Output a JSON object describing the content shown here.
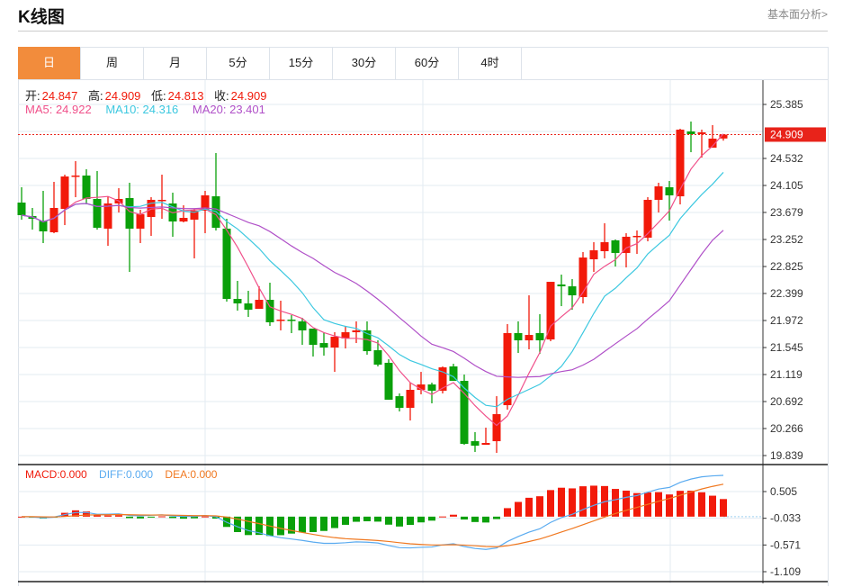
{
  "header": {
    "title": "K线图",
    "link": "基本面分析>"
  },
  "tabs": [
    {
      "label": "日",
      "active": true
    },
    {
      "label": "周"
    },
    {
      "label": "月"
    },
    {
      "label": "5分"
    },
    {
      "label": "15分"
    },
    {
      "label": "30分"
    },
    {
      "label": "60分"
    },
    {
      "label": "4时"
    }
  ],
  "ohlc_legend": {
    "open_label": "开:",
    "open": "24.847",
    "high_label": "高:",
    "high": "24.909",
    "low_label": "低:",
    "low": "24.813",
    "close_label": "收:",
    "close": "24.909"
  },
  "ma_legend": {
    "ma5": "MA5: 24.922",
    "ma10": "MA10: 24.316",
    "ma20": "MA20: 23.401"
  },
  "macd_legend": {
    "macd": "MACD:0.000",
    "diff": "DIFF:0.000",
    "dea": "DEA:0.000"
  },
  "colors": {
    "up": "#f21a0a",
    "down": "#0aa00a",
    "ma5": "#f0508a",
    "ma10": "#3cc8e0",
    "ma20": "#b050c8",
    "diff": "#5aabf0",
    "dea": "#f07820",
    "active_tab": "#f28c3c"
  },
  "chart_data": {
    "type": "candlestick",
    "price_axis": {
      "ticks": [
        "25.385",
        "24.532",
        "24.105",
        "23.679",
        "23.252",
        "22.825",
        "22.399",
        "21.972",
        "21.545",
        "21.119",
        "20.692",
        "20.266",
        "19.839"
      ],
      "range": [
        19.839,
        25.385
      ]
    },
    "current_price": "24.909",
    "macd_axis": {
      "ticks": [
        "0.505",
        "-0.033",
        "-0.571",
        "-1.109"
      ],
      "range": [
        -1.109,
        0.505
      ]
    },
    "candles": [
      [
        23.835,
        24.077,
        23.565,
        23.636
      ],
      [
        23.622,
        23.75,
        23.408,
        23.579
      ],
      [
        23.55,
        24.02,
        23.195,
        23.38
      ],
      [
        23.366,
        24.162,
        23.351,
        23.75
      ],
      [
        23.735,
        24.276,
        23.479,
        24.247
      ],
      [
        24.247,
        24.489,
        23.92,
        24.262
      ],
      [
        24.262,
        24.361,
        23.806,
        23.892
      ],
      [
        23.892,
        24.333,
        23.408,
        23.437
      ],
      [
        23.423,
        23.934,
        23.152,
        23.821
      ],
      [
        23.821,
        24.062,
        23.678,
        23.892
      ],
      [
        23.906,
        24.148,
        22.74,
        23.423
      ],
      [
        23.423,
        23.721,
        23.195,
        23.65
      ],
      [
        23.607,
        23.92,
        23.309,
        23.878
      ],
      [
        23.863,
        24.276,
        23.579,
        23.878
      ],
      [
        23.821,
        23.991,
        23.295,
        23.536
      ],
      [
        23.536,
        23.792,
        23.522,
        23.593
      ],
      [
        23.565,
        23.735,
        22.953,
        23.707
      ],
      [
        23.707,
        24.02,
        23.351,
        23.949
      ],
      [
        23.934,
        24.617,
        23.394,
        23.437
      ],
      [
        23.423,
        23.579,
        22.271,
        22.313
      ],
      [
        22.313,
        22.598,
        22.128,
        22.242
      ],
      [
        22.242,
        22.441,
        22.029,
        22.143
      ],
      [
        22.157,
        22.512,
        22.157,
        22.299
      ],
      [
        22.299,
        22.569,
        21.887,
        21.944
      ],
      [
        21.972,
        22.285,
        21.816,
        21.986
      ],
      [
        21.986,
        22.057,
        21.773,
        21.972
      ],
      [
        21.958,
        22.015,
        21.588,
        21.816
      ],
      [
        21.844,
        21.844,
        21.403,
        21.588
      ],
      [
        21.616,
        21.787,
        21.417,
        21.545
      ],
      [
        21.545,
        21.787,
        21.161,
        21.716
      ],
      [
        21.688,
        21.887,
        21.531,
        21.787
      ],
      [
        21.787,
        21.958,
        21.616,
        21.816
      ],
      [
        21.816,
        21.958,
        21.432,
        21.488
      ],
      [
        21.503,
        21.659,
        21.247,
        21.275
      ],
      [
        21.304,
        21.36,
        20.721,
        20.721
      ],
      [
        20.777,
        20.82,
        20.536,
        20.593
      ],
      [
        20.593,
        20.991,
        20.393,
        20.877
      ],
      [
        20.877,
        21.161,
        20.806,
        20.962
      ],
      [
        20.962,
        20.991,
        20.664,
        20.863
      ],
      [
        20.863,
        21.247,
        20.82,
        21.232
      ],
      [
        21.247,
        21.289,
        21.019,
        21.019
      ],
      [
        21.019,
        21.119,
        20.009,
        20.024
      ],
      [
        20.066,
        20.209,
        19.896,
        19.995
      ],
      [
        20.009,
        20.28,
        20.009,
        20.038
      ],
      [
        20.066,
        20.777,
        19.881,
        20.493
      ],
      [
        20.635,
        21.915,
        20.564,
        21.773
      ],
      [
        21.773,
        21.958,
        21.46,
        21.659
      ],
      [
        21.659,
        22.37,
        21.517,
        21.744
      ],
      [
        21.773,
        22.072,
        21.446,
        21.659
      ],
      [
        21.673,
        22.583,
        21.645,
        22.583
      ],
      [
        22.541,
        22.697,
        22.199,
        22.512
      ],
      [
        22.512,
        22.626,
        22.143,
        22.37
      ],
      [
        22.342,
        23.053,
        22.242,
        22.967
      ],
      [
        22.939,
        23.209,
        22.74,
        23.081
      ],
      [
        23.067,
        23.508,
        22.953,
        23.209
      ],
      [
        23.238,
        23.252,
        22.825,
        23.039
      ],
      [
        23.039,
        23.351,
        22.811,
        23.295
      ],
      [
        23.295,
        23.394,
        23.024,
        23.309
      ],
      [
        23.28,
        23.92,
        23.223,
        23.878
      ],
      [
        23.878,
        24.148,
        23.678,
        24.091
      ],
      [
        24.077,
        24.176,
        23.55,
        23.949
      ],
      [
        23.934,
        25.001,
        23.806,
        24.987
      ],
      [
        24.958,
        25.115,
        24.631,
        24.916
      ],
      [
        24.916,
        24.987,
        24.546,
        24.944
      ],
      [
        24.702,
        25.058,
        24.702,
        24.845
      ],
      [
        24.847,
        24.909,
        24.813,
        24.909
      ]
    ],
    "candle_format": [
      "open",
      "high",
      "low",
      "close"
    ],
    "ma_periods": [
      5,
      10,
      20
    ],
    "macd_params": [
      12,
      26,
      9
    ]
  }
}
